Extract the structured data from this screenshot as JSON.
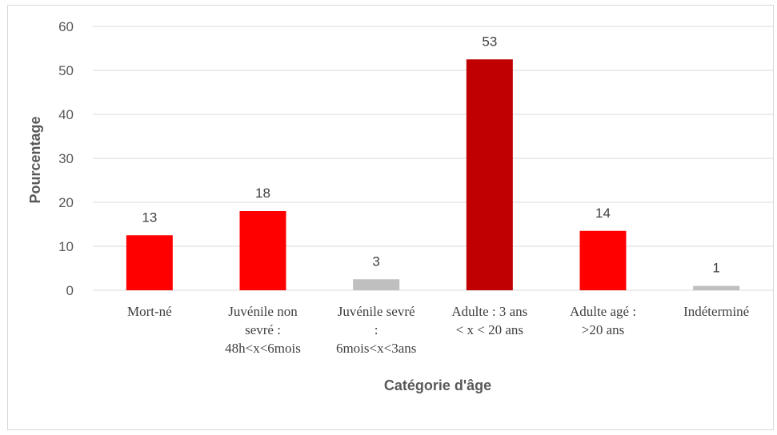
{
  "chart_data": {
    "type": "bar",
    "xlabel": "Catégorie d'âge",
    "ylabel": "Pourcentage",
    "ylim": [
      0,
      60
    ],
    "yticks": [
      0,
      10,
      20,
      30,
      40,
      50,
      60
    ],
    "grid": true,
    "legend": "none",
    "categories": [
      [
        "Mort-né"
      ],
      [
        "Juvénile non",
        "sevré :",
        "48h<x<6mois"
      ],
      [
        "Juvénile sevré",
        ":",
        "6mois<x<3ans"
      ],
      [
        "Adulte : 3 ans",
        "< x < 20  ans"
      ],
      [
        "Adulte agé :",
        ">20 ans"
      ],
      [
        "Indéterminé"
      ]
    ],
    "values": [
      12.5,
      18,
      2.5,
      52.5,
      13.5,
      1
    ],
    "data_labels": [
      "13",
      "18",
      "3",
      "53",
      "14",
      "1"
    ],
    "bar_colors": [
      "#ff0000",
      "#ff0000",
      "#bfbfbf",
      "#c00000",
      "#ff0000",
      "#bfbfbf"
    ],
    "gridline_color": "#d9d9d9"
  }
}
